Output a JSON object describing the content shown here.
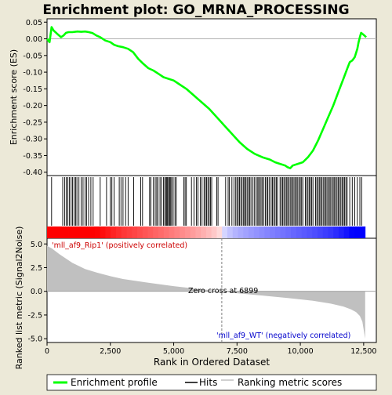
{
  "chart_data": {
    "type": "line",
    "title": "Enrichment plot: GO_MRNA_PROCESSING",
    "es_panel": {
      "ylabel": "Enrichment score (ES)",
      "ylim": [
        -0.41,
        0.06
      ],
      "yticks": [
        0.05,
        0.0,
        -0.05,
        -0.1,
        -0.15,
        -0.2,
        -0.25,
        -0.3,
        -0.35,
        -0.4
      ],
      "ytick_labels": [
        "0.05",
        "0.00",
        "-0.05",
        "-0.10",
        "-0.15",
        "-0.20",
        "-0.25",
        "-0.30",
        "-0.35",
        "-0.40"
      ],
      "series": [
        {
          "name": "Enrichment profile",
          "color": "#00ff00",
          "x": [
            0,
            100,
            180,
            260,
            400,
            550,
            650,
            750,
            850,
            1000,
            1200,
            1350,
            1500,
            1650,
            1800,
            1950,
            2100,
            2300,
            2500,
            2650,
            2800,
            3000,
            3200,
            3400,
            3600,
            3800,
            4000,
            4200,
            4400,
            4600,
            4800,
            5000,
            5200,
            5500,
            5800,
            6100,
            6400,
            6700,
            7000,
            7300,
            7600,
            7900,
            8200,
            8500,
            8800,
            9000,
            9200,
            9400,
            9500,
            9600,
            9700,
            9900,
            10100,
            10300,
            10500,
            10700,
            10900,
            11100,
            11300,
            11500,
            11700,
            11850,
            11950,
            12050,
            12150,
            12250,
            12300,
            12350,
            12400,
            12500,
            12600
          ],
          "y": [
            0.0,
            -0.01,
            0.035,
            0.025,
            0.015,
            0.005,
            0.01,
            0.018,
            0.02,
            0.02,
            0.022,
            0.021,
            0.022,
            0.02,
            0.017,
            0.01,
            0.005,
            -0.005,
            -0.01,
            -0.018,
            -0.022,
            -0.025,
            -0.03,
            -0.04,
            -0.06,
            -0.075,
            -0.088,
            -0.095,
            -0.105,
            -0.115,
            -0.12,
            -0.125,
            -0.135,
            -0.15,
            -0.17,
            -0.19,
            -0.21,
            -0.235,
            -0.26,
            -0.285,
            -0.31,
            -0.33,
            -0.345,
            -0.355,
            -0.362,
            -0.37,
            -0.375,
            -0.38,
            -0.385,
            -0.388,
            -0.38,
            -0.375,
            -0.37,
            -0.355,
            -0.335,
            -0.305,
            -0.27,
            -0.235,
            -0.2,
            -0.16,
            -0.12,
            -0.09,
            -0.07,
            -0.065,
            -0.055,
            -0.03,
            -0.01,
            0.005,
            0.018,
            0.012,
            0.005
          ]
        }
      ]
    },
    "hits_panel": {
      "name": "Hits",
      "positions": [
        180,
        620,
        700,
        760,
        820,
        880,
        950,
        1010,
        1070,
        1130,
        1180,
        1260,
        1350,
        1420,
        1500,
        1560,
        1640,
        1730,
        1820,
        2100,
        2350,
        2500,
        2560,
        2650,
        2850,
        2920,
        3000,
        3100,
        3200,
        3420,
        3700,
        3770,
        4050,
        4100,
        4200,
        4270,
        4330,
        4380,
        4460,
        4520,
        4600,
        4650,
        4700,
        4730,
        4760,
        4800,
        4840,
        4880,
        4920,
        4980,
        5050,
        5100,
        5400,
        5450,
        5500,
        5700,
        5800,
        5900,
        5960,
        6050,
        6120,
        6200,
        6250,
        6300,
        6350,
        6400,
        6450,
        6500,
        6700,
        6750,
        7050,
        7150,
        7200,
        7300,
        7380,
        7450,
        7500,
        7550,
        7600,
        7650,
        7700,
        7760,
        7800,
        7850,
        7900,
        7950,
        8000,
        8050,
        8120,
        8180,
        8250,
        8300,
        8350,
        8400,
        8450,
        8500,
        8560,
        8620,
        8680,
        8720,
        8780,
        8850,
        8900,
        8950,
        9000,
        9050,
        9100,
        9200,
        9250,
        9300,
        9350,
        9400,
        9450,
        9500,
        9550,
        9600,
        9650,
        9700,
        9750,
        9800,
        9850,
        9900,
        9950,
        10000,
        10050,
        10100,
        10200,
        10250,
        10300,
        10350,
        10400,
        10450,
        10500,
        10600,
        10650,
        10700,
        10750,
        10800,
        10850,
        10900,
        10950,
        11000,
        11050,
        11100,
        11150,
        11200,
        11250,
        11300,
        11350,
        11400,
        11450,
        11500,
        11550,
        11600,
        11650,
        11700,
        11750,
        11800,
        11850,
        11950,
        12050,
        12150,
        12250,
        12350,
        12420
      ]
    },
    "metric_panel": {
      "name": "Ranking metric scores",
      "ylabel": "Ranked list metric (Signal2Noise)",
      "xlabel": "Rank in Ordered Dataset",
      "ylim": [
        -5.4,
        5.6
      ],
      "yticks": [
        5.0,
        2.5,
        0.0,
        -2.5,
        -5.0
      ],
      "ytick_labels": [
        "5.0",
        "2.5",
        "0.0",
        "-2.5",
        "-5.0"
      ],
      "xlim": [
        0,
        13000
      ],
      "xticks": [
        0,
        2500,
        5000,
        7500,
        10000,
        12500
      ],
      "xtick_labels": [
        "0",
        "2,500",
        "5,000",
        "7,500",
        "10,000",
        "12,500"
      ],
      "x": [
        0,
        200,
        500,
        1000,
        1500,
        2000,
        2500,
        3000,
        4000,
        5000,
        6000,
        6899,
        7500,
        8500,
        9500,
        10500,
        11200,
        11700,
        12000,
        12200,
        12350,
        12450,
        12500,
        12560
      ],
      "y": [
        4.8,
        4.5,
        3.9,
        3.0,
        2.35,
        1.95,
        1.6,
        1.3,
        0.9,
        0.55,
        0.25,
        0.0,
        -0.2,
        -0.45,
        -0.7,
        -1.0,
        -1.3,
        -1.6,
        -1.9,
        -2.2,
        -2.6,
        -3.2,
        -4.0,
        -5.0
      ],
      "zero_cross": 6899,
      "zero_cross_label": "Zero cross at 6899",
      "positive_label": "'mll_af9_Rip1' (positively correlated)",
      "negative_label": "'mll_af9_WT' (negatively correlated)",
      "positive_label_color": "#cc0000",
      "negative_label_color": "#0000cc"
    },
    "legend": {
      "placement": "bottom",
      "items": [
        {
          "name": "Enrichment profile",
          "color": "#00ff00"
        },
        {
          "name": "Hits",
          "color": "#000000"
        },
        {
          "name": "Ranking metric scores",
          "color": "#c0c0c0"
        }
      ]
    }
  }
}
